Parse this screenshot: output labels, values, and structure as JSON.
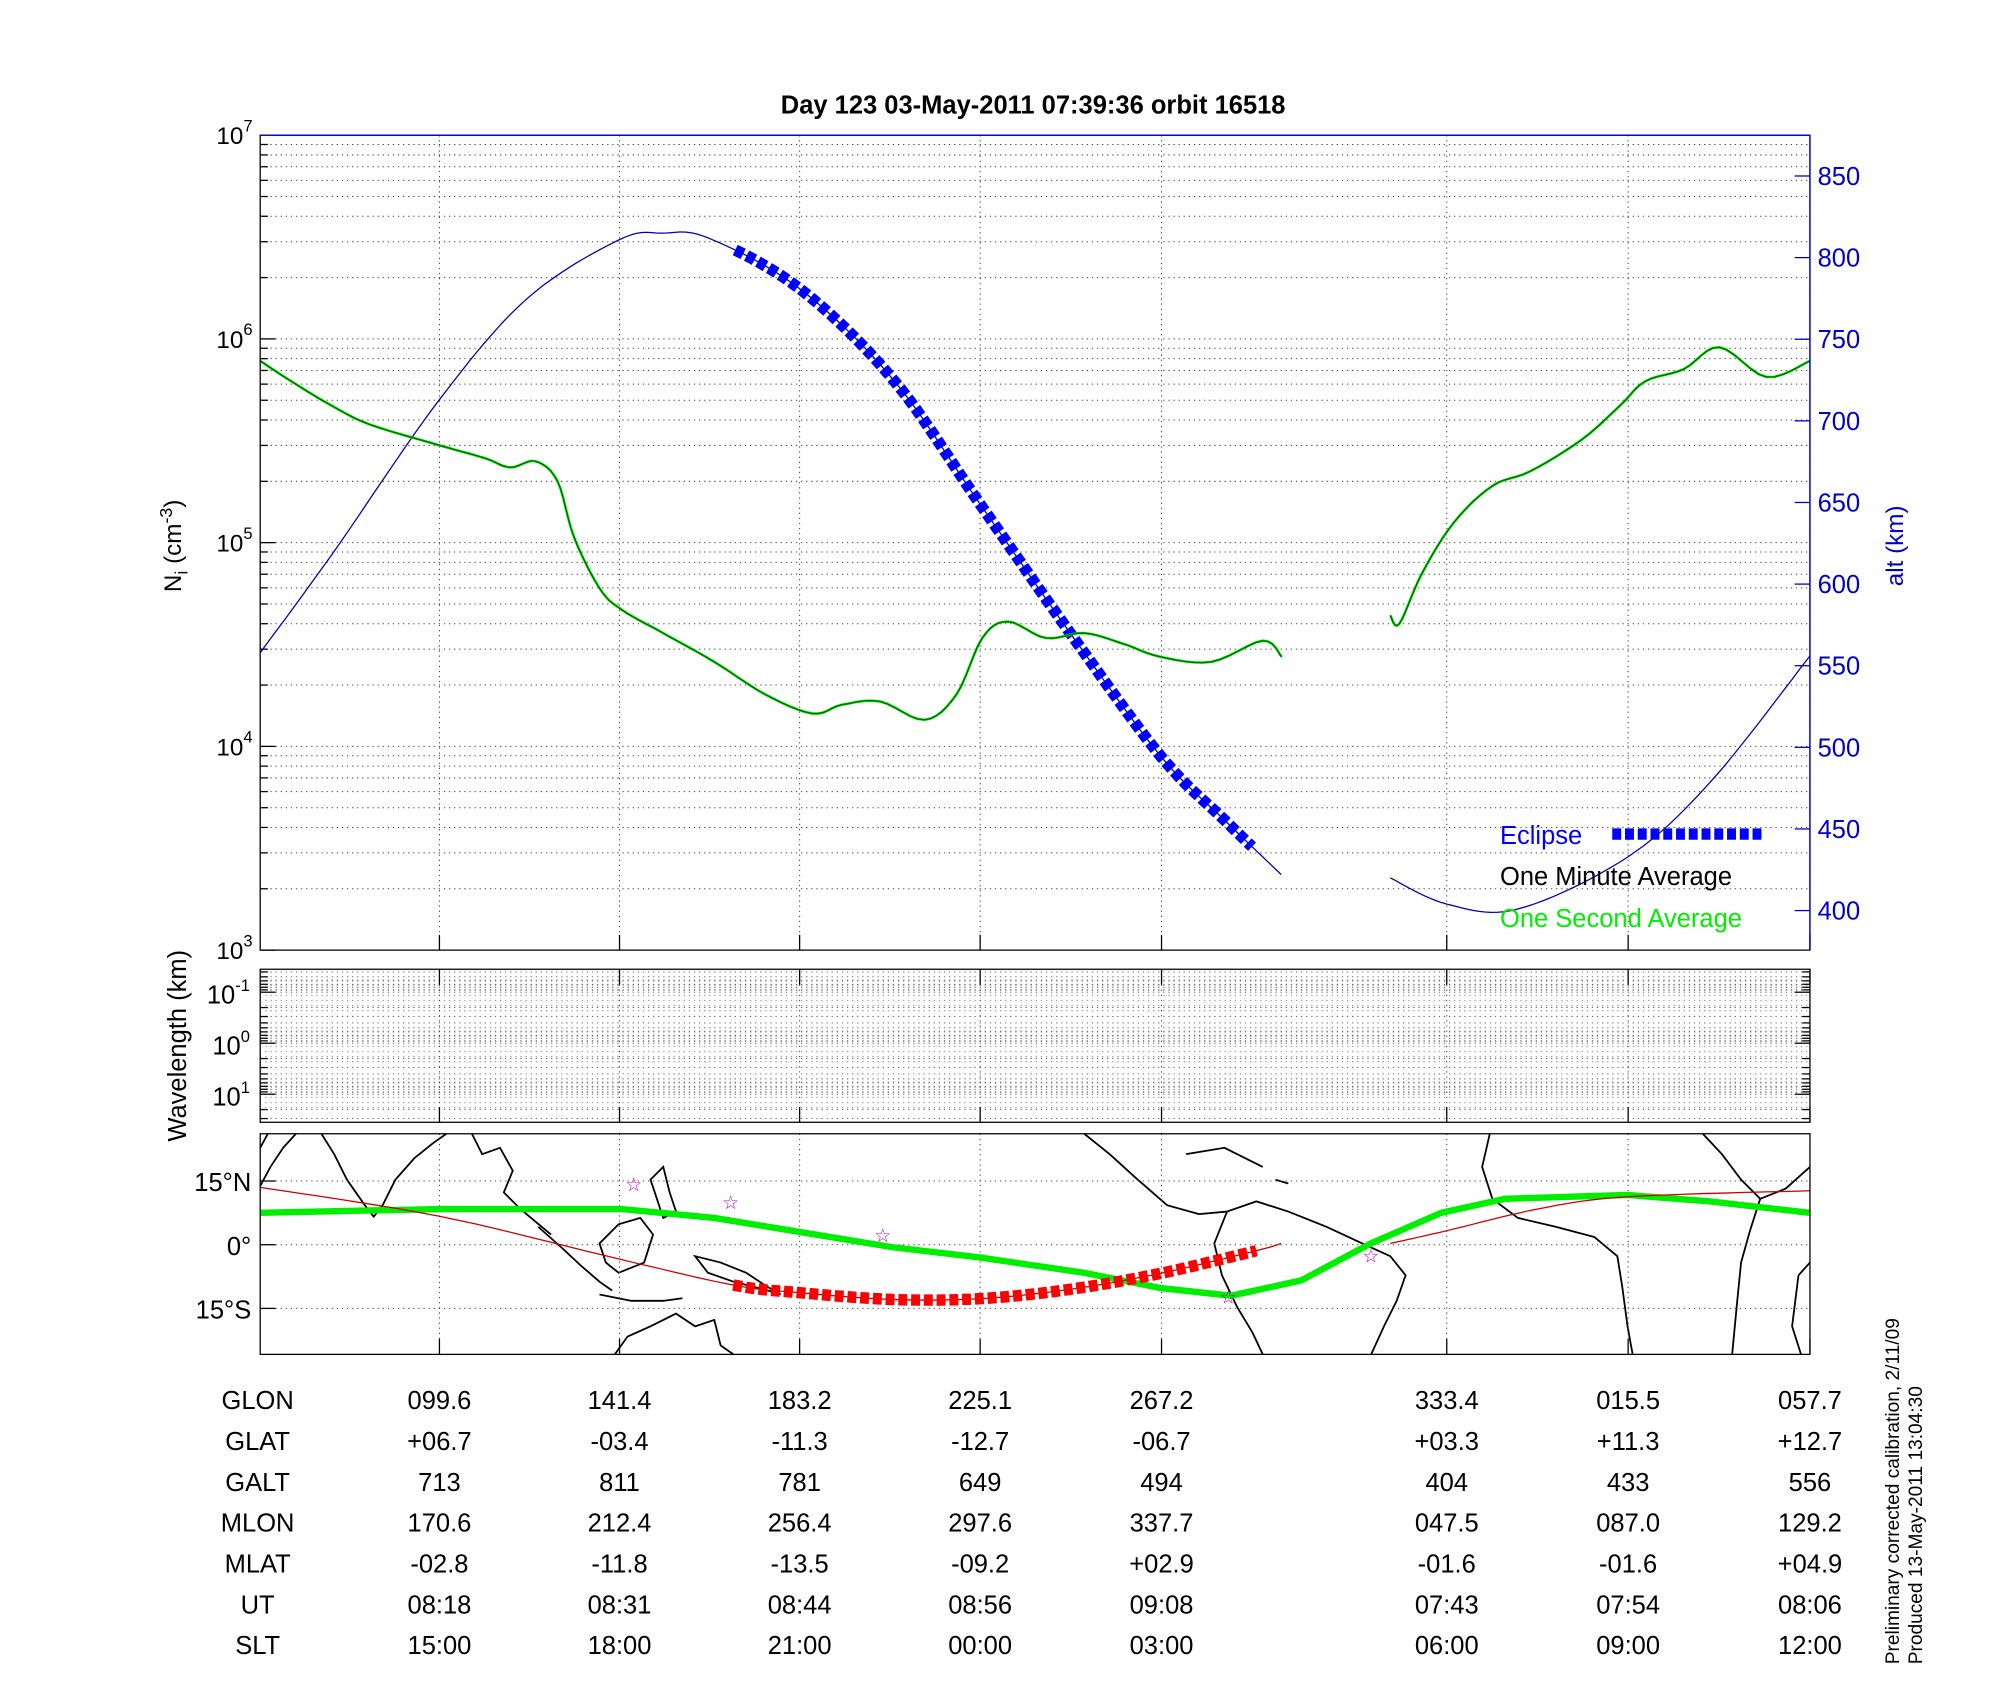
{
  "title": "Day 123  03-May-2011 07:39:36   orbit 16518",
  "colors": {
    "altitude": "#0000aa",
    "eclipse": "#0000ff",
    "one_minute": "#006400",
    "one_second": "#00ee00",
    "orbit_track": "#cc0000",
    "eclipse_track": "#ff0000",
    "stars": "#cc00cc",
    "axis_right": "#0000cc"
  },
  "chart_data": [
    {
      "type": "line",
      "panel": "ion-density",
      "ylabel": {
        "main": "N",
        "sub": "i",
        "unit_open": " (cm",
        "unit_sup": "-3",
        "unit_close": ")"
      },
      "y2label": "alt (km)",
      "yscale": "log",
      "ylim": [
        1000,
        10000000
      ],
      "y2lim": [
        376,
        875
      ],
      "xlim": [
        58,
        417.7
      ],
      "grid": true,
      "y_ticks": [
        {
          "base": "10",
          "exp": "3"
        },
        {
          "base": "10",
          "exp": "4"
        },
        {
          "base": "10",
          "exp": "5"
        },
        {
          "base": "10",
          "exp": "6"
        },
        {
          "base": "10",
          "exp": "7"
        }
      ],
      "y2_ticks": [
        "400",
        "450",
        "500",
        "550",
        "600",
        "650",
        "700",
        "750",
        "800",
        "850"
      ],
      "legend": {
        "placement": "bottom-right",
        "eclipse": "Eclipse",
        "one_minute": "One Minute Average",
        "one_second": "One Second Average"
      },
      "ni_segments": [
        [
          [
            58,
            780000
          ],
          [
            65.7,
            610000
          ],
          [
            74.6,
            470000
          ],
          [
            83.5,
            380000
          ],
          [
            99.7,
            300000
          ],
          [
            110.1,
            260000
          ],
          [
            116,
            234000
          ],
          [
            121.9,
            251000
          ],
          [
            127,
            200000
          ],
          [
            130.8,
            107000
          ],
          [
            136.7,
            60000
          ],
          [
            141.8,
            47000
          ],
          [
            151.5,
            36000
          ],
          [
            163.4,
            26000
          ],
          [
            175.2,
            18000
          ],
          [
            186.2,
            14500
          ],
          [
            193,
            16000
          ],
          [
            201.9,
            16600
          ],
          [
            212.2,
            13500
          ],
          [
            219.6,
            18000
          ],
          [
            225.6,
            34000
          ],
          [
            231.5,
            41000
          ],
          [
            240.4,
            34000
          ],
          [
            249.2,
            36000
          ],
          [
            258.1,
            32000
          ],
          [
            267,
            27500
          ],
          [
            278.8,
            26000
          ],
          [
            290.7,
            33000
          ],
          [
            295.1,
            27500
          ]
        ],
        [
          [
            320.3,
            44000
          ],
          [
            322.4,
            40000
          ],
          [
            327.7,
            71000
          ],
          [
            335.1,
            126000
          ],
          [
            344,
            190000
          ],
          [
            352.8,
            224000
          ],
          [
            364.7,
            320000
          ],
          [
            373.6,
            470000
          ],
          [
            379.5,
            620000
          ],
          [
            388.4,
            710000
          ],
          [
            396.7,
            910000
          ],
          [
            407.6,
            650000
          ],
          [
            417.7,
            780000
          ]
        ]
      ],
      "altitude_segments": [
        [
          [
            58,
            558
          ],
          [
            74.6,
            618
          ],
          [
            99.6,
            713
          ],
          [
            120,
            775
          ],
          [
            141.4,
            811
          ],
          [
            151.5,
            815
          ],
          [
            162,
            812
          ],
          [
            183.2,
            781
          ],
          [
            205,
            725
          ],
          [
            225.1,
            649
          ],
          [
            246,
            570
          ],
          [
            267.2,
            494
          ],
          [
            282,
            455
          ],
          [
            295,
            422
          ]
        ],
        [
          [
            320.3,
            420
          ],
          [
            333.4,
            404
          ],
          [
            350,
            401
          ],
          [
            375.5,
            433
          ],
          [
            395,
            480
          ],
          [
            417.7,
            556
          ]
        ]
      ],
      "eclipse_range": [
        167.8,
        289.2
      ]
    },
    {
      "type": "heatmap",
      "panel": "wavelength",
      "ylabel": "Wavelength (km)",
      "yscale": "log",
      "y_ticks": [
        {
          "base": "10",
          "exp": "-1"
        },
        {
          "base": "10",
          "exp": "0"
        },
        {
          "base": "10",
          "exp": "1"
        }
      ],
      "values": []
    },
    {
      "type": "line",
      "panel": "map",
      "ylim": [
        -25.8,
        26.4
      ],
      "y_ticks": [
        {
          "value": 15,
          "label": "15°N"
        },
        {
          "value": 0,
          "label": "0°"
        },
        {
          "value": -15,
          "label": "15°S"
        }
      ],
      "magnetic_equator": [
        [
          58,
          7.5
        ],
        [
          99.7,
          8.4
        ],
        [
          141.8,
          8.4
        ],
        [
          163.4,
          6.3
        ],
        [
          183.2,
          3.0
        ],
        [
          204.8,
          -0.6
        ],
        [
          225,
          -3.0
        ],
        [
          249.2,
          -6.6
        ],
        [
          267,
          -10.2
        ],
        [
          283.3,
          -12
        ],
        [
          299.6,
          -8.4
        ],
        [
          315.8,
          0.3
        ],
        [
          332.1,
          7.5
        ],
        [
          346.9,
          10.8
        ],
        [
          375.3,
          11.7
        ],
        [
          394.3,
          10.2
        ],
        [
          417.7,
          7.5
        ]
      ],
      "orbit_track_segments": [
        [
          [
            58,
            13.5
          ],
          [
            99.6,
            6.7
          ],
          [
            141.4,
            -3.4
          ],
          [
            167.8,
            -9.5
          ],
          [
            183.2,
            -11.3
          ],
          [
            205,
            -12.9
          ],
          [
            225.1,
            -12.7
          ],
          [
            246,
            -10.5
          ],
          [
            267.2,
            -6.7
          ],
          [
            289.2,
            -1.4
          ],
          [
            295,
            0.3
          ]
        ],
        [
          [
            320.3,
            0.3
          ],
          [
            333.4,
            3.3
          ],
          [
            355,
            8.5
          ],
          [
            375.5,
            11.3
          ],
          [
            417.7,
            12.7
          ]
        ]
      ],
      "stars": [
        [
          144.7,
          14.4
        ],
        [
          167.2,
          10.2
        ],
        [
          202.5,
          2.4
        ],
        [
          282.7,
          -12
        ],
        [
          315.8,
          -2.4
        ]
      ]
    }
  ],
  "table": {
    "column_lon": [
      99.6,
      141.4,
      183.2,
      225.1,
      267.2,
      333.4,
      375.5,
      417.7
    ],
    "rows": [
      {
        "label": "GLON",
        "values": [
          "099.6",
          "141.4",
          "183.2",
          "225.1",
          "267.2",
          "333.4",
          "015.5",
          "057.7"
        ]
      },
      {
        "label": "GLAT",
        "values": [
          "+06.7",
          "-03.4",
          "-11.3",
          "-12.7",
          "-06.7",
          "+03.3",
          "+11.3",
          "+12.7"
        ]
      },
      {
        "label": "GALT",
        "values": [
          "713",
          "811",
          "781",
          "649",
          "494",
          "404",
          "433",
          "556"
        ]
      },
      {
        "label": "MLON",
        "values": [
          "170.6",
          "212.4",
          "256.4",
          "297.6",
          "337.7",
          "047.5",
          "087.0",
          "129.2"
        ]
      },
      {
        "label": "MLAT",
        "values": [
          "-02.8",
          "-11.8",
          "-13.5",
          "-09.2",
          "+02.9",
          "-01.6",
          "-01.6",
          "+04.9"
        ]
      },
      {
        "label": "UT",
        "values": [
          "08:18",
          "08:31",
          "08:44",
          "08:56",
          "09:08",
          "07:43",
          "07:54",
          "08:06"
        ]
      },
      {
        "label": "SLT",
        "values": [
          "15:00",
          "18:00",
          "21:00",
          "00:00",
          "03:00",
          "06:00",
          "09:00",
          "12:00"
        ]
      }
    ]
  },
  "footer": {
    "calibration": "Preliminary corrected calibration, 2/11/09",
    "produced": "Produced 13-May-2011 13:04:30"
  }
}
